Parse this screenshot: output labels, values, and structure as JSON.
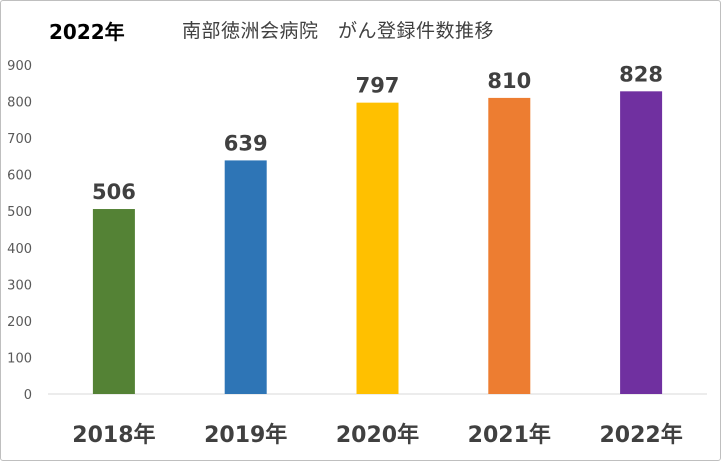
{
  "header": {
    "year_label": "2022年",
    "title": "南部徳洲会病院　がん登録件数推移"
  },
  "chart_data": {
    "type": "bar",
    "title": "南部徳洲会病院　がん登録件数推移",
    "categories": [
      "2018年",
      "2019年",
      "2020年",
      "2021年",
      "2022年"
    ],
    "values": [
      506,
      639,
      797,
      810,
      828
    ],
    "colors": [
      "#548235",
      "#2E75B6",
      "#FFC000",
      "#ED7D31",
      "#7030A0"
    ],
    "y_ticks": [
      "0",
      "100",
      "200",
      "300",
      "400",
      "500",
      "600",
      "700",
      "800",
      "900"
    ],
    "ylim": [
      0,
      900
    ],
    "xlabel": "",
    "ylabel": "",
    "grid": false,
    "legend": "none"
  }
}
